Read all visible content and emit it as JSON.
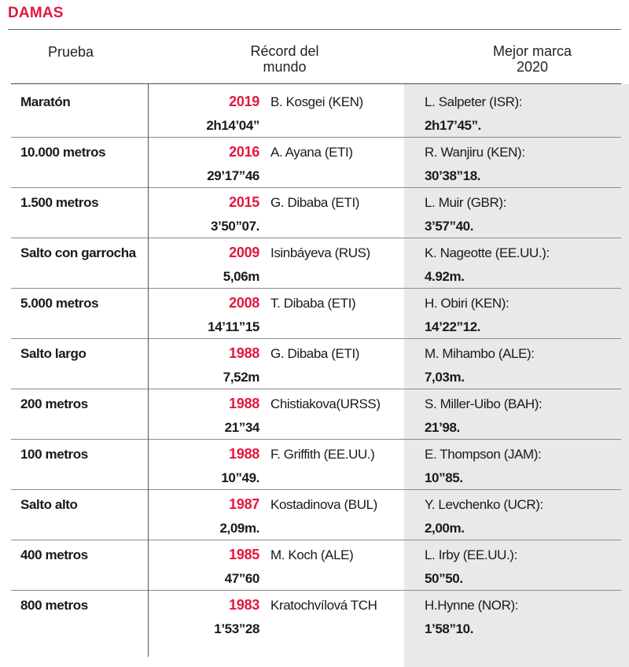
{
  "title": "DAMAS",
  "headers": {
    "event": "Prueba",
    "record_line1": "Récord del",
    "record_line2": "mundo",
    "best_line1": "Mejor marca",
    "best_line2": "2020"
  },
  "colors": {
    "accent": "#e3173e",
    "shade": "#e8e9ea"
  },
  "rows": [
    {
      "event": "Maratón",
      "year": "2019",
      "holder": "B. Kosgei (KEN)",
      "mark": "2h14’04”",
      "best_holder": "L. Salpeter (ISR):",
      "best_mark": "2h17’45”."
    },
    {
      "event": "10.000 metros",
      "year": "2016",
      "holder": "A. Ayana (ETI)",
      "mark": "29’17”46",
      "best_holder": "R. Wanjiru (KEN):",
      "best_mark": "30’38”18."
    },
    {
      "event": "1.500 metros",
      "year": "2015",
      "holder": "G. Dibaba (ETI)",
      "mark": "3’50”07.",
      "best_holder": "L. Muir (GBR):",
      "best_mark": "3’57”40."
    },
    {
      "event": "Salto con garrocha",
      "year": "2009",
      "holder": "Isinbáyeva (RUS)",
      "mark": "5,06m",
      "best_holder": "K. Nageotte (EE.UU.):",
      "best_mark": "4.92m."
    },
    {
      "event": "5.000 metros",
      "year": "2008",
      "holder": "T. Dibaba (ETI)",
      "mark": "14’11”15",
      "best_holder": "H. Obiri (KEN):",
      "best_mark": "14’22”12."
    },
    {
      "event": "Salto largo",
      "year": "1988",
      "holder": "G. Dibaba (ETI)",
      "mark": "7,52m",
      "best_holder": "M. Mihambo (ALE):",
      "best_mark": "7,03m."
    },
    {
      "event": "200 metros",
      "year": "1988",
      "holder": "Chistiakova(URSS)",
      "mark": "21”34",
      "best_holder": "S. Miller-Uibo (BAH):",
      "best_mark": "21’98."
    },
    {
      "event": "100 metros",
      "year": "1988",
      "holder": "F. Griffith (EE.UU.)",
      "mark": "10”49.",
      "best_holder": "E. Thompson (JAM):",
      "best_mark": "10”85."
    },
    {
      "event": "Salto alto",
      "year": "1987",
      "holder": "Kostadinova (BUL)",
      "mark": "2,09m.",
      "best_holder": "Y. Levchenko (UCR):",
      "best_mark": "2,00m."
    },
    {
      "event": "400 metros",
      "year": "1985",
      "holder": "M. Koch (ALE)",
      "mark": "47”60",
      "best_holder": "L. Irby (EE.UU.):",
      "best_mark": "50”50."
    },
    {
      "event": "800 metros",
      "year": "1983",
      "holder": "Kratochvílová TCH",
      "mark": "1’53”28",
      "best_holder": "H.Hynne (NOR):",
      "best_mark": "1’58”10."
    }
  ]
}
